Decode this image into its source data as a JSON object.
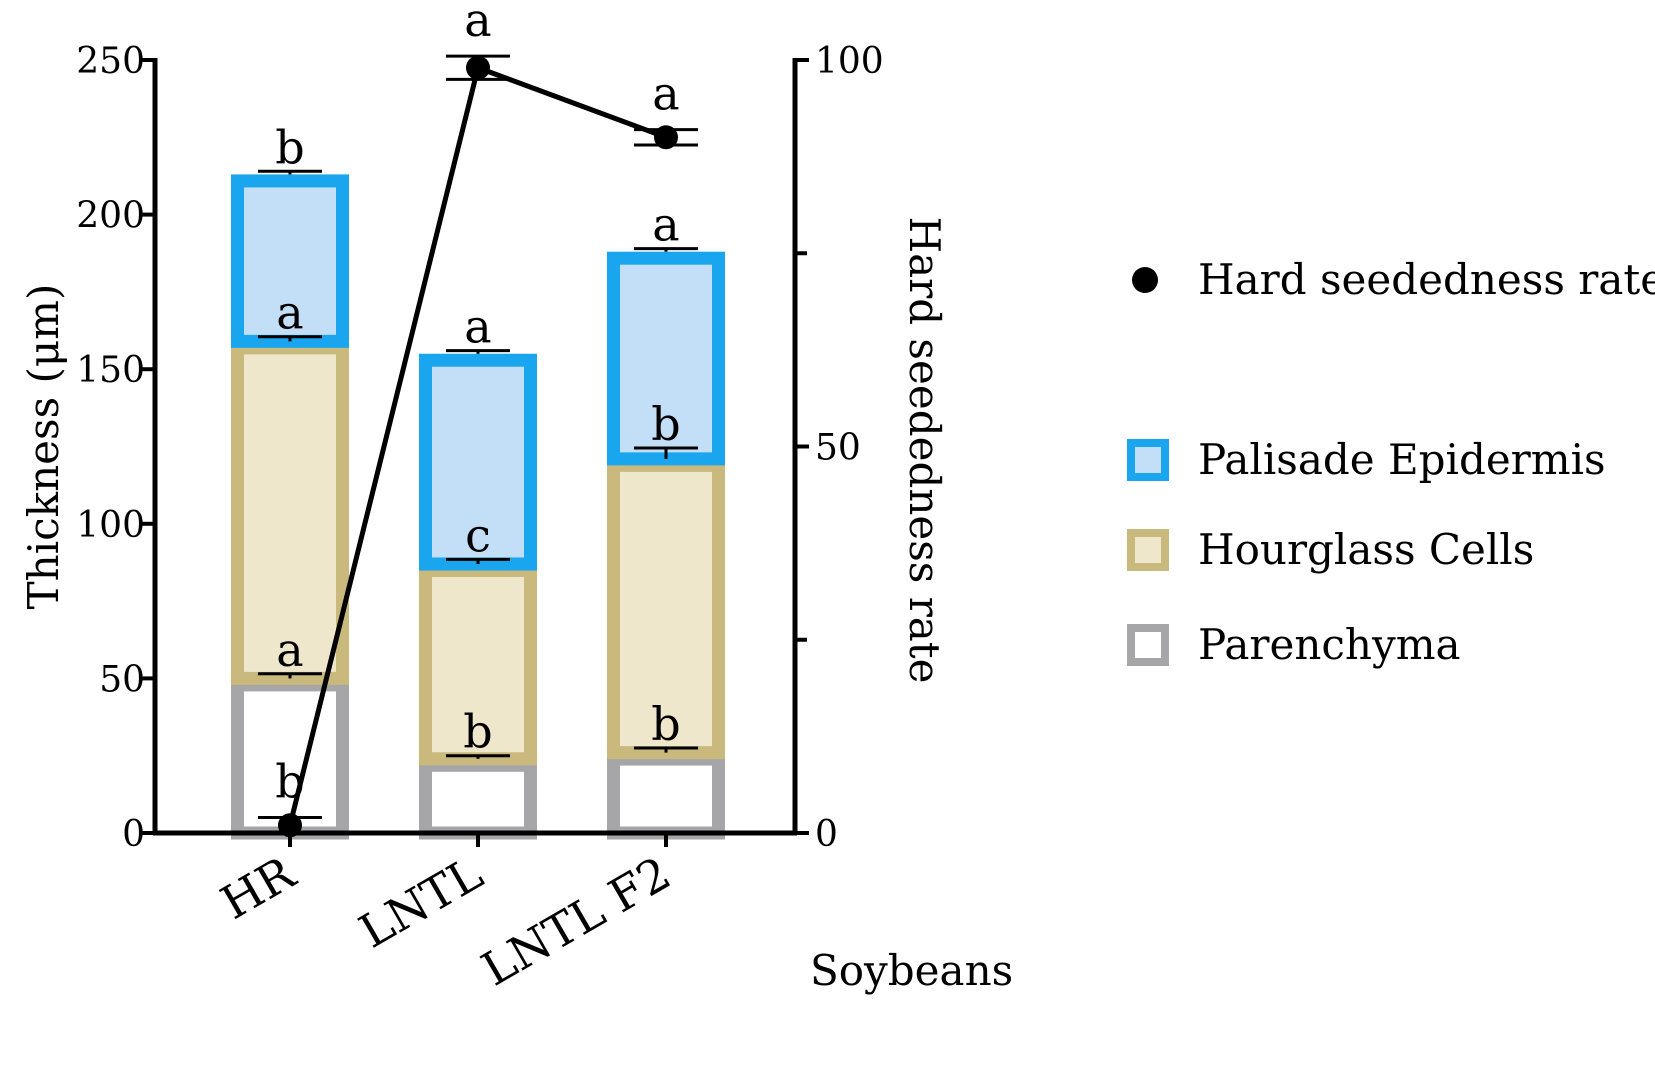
{
  "chart_data": {
    "type": "bar",
    "subtype": "stacked-bar-with-line",
    "xlabel": "Soybeans",
    "ylabel_left": "Thickness (μm)",
    "ylabel_right": "Hard seededness rate",
    "ylim_left": [
      0,
      250
    ],
    "ylim_right": [
      0,
      100
    ],
    "yticks_left": [
      0,
      50,
      100,
      150,
      200,
      250
    ],
    "yticks_right": [
      0,
      50,
      100
    ],
    "yticks_right_minor": [
      25,
      75
    ],
    "categories": [
      "HR",
      "LNTL",
      "LNTL F2"
    ],
    "series": [
      {
        "name": "Parenchyma",
        "values": [
          50,
          24,
          26
        ],
        "errors": [
          1.5,
          1.0,
          1.5
        ],
        "significance": [
          "a",
          "b",
          "b"
        ],
        "stroke": "#a6a6a8",
        "fill": "#ffffff"
      },
      {
        "name": "Hourglass Cells",
        "values": [
          109,
          63,
          95
        ],
        "errors": [
          1.5,
          1.5,
          3.5
        ],
        "significance": [
          "a",
          "c",
          "b"
        ],
        "stroke": "#c9b97c",
        "fill": "#efe7cb"
      },
      {
        "name": "Palisade Epidermis",
        "values": [
          54,
          68,
          67
        ],
        "errors": [
          1.0,
          1.0,
          1.0
        ],
        "significance": [
          "b",
          "a",
          "a"
        ],
        "stroke": "#1aa6ef",
        "fill": "#c2dff7"
      }
    ],
    "line_series": {
      "name": "Hard seededness rate",
      "axis": "right",
      "values": [
        1,
        99,
        90
      ],
      "errors": [
        1,
        1.5,
        1
      ],
      "significance": [
        "b",
        "a",
        "a"
      ],
      "color": "#000000"
    },
    "legend": {
      "position": "right",
      "entries": [
        "Hard seededness rate",
        "Palisade Epidermis",
        "Hourglass Cells",
        "Parenchyma"
      ]
    }
  }
}
